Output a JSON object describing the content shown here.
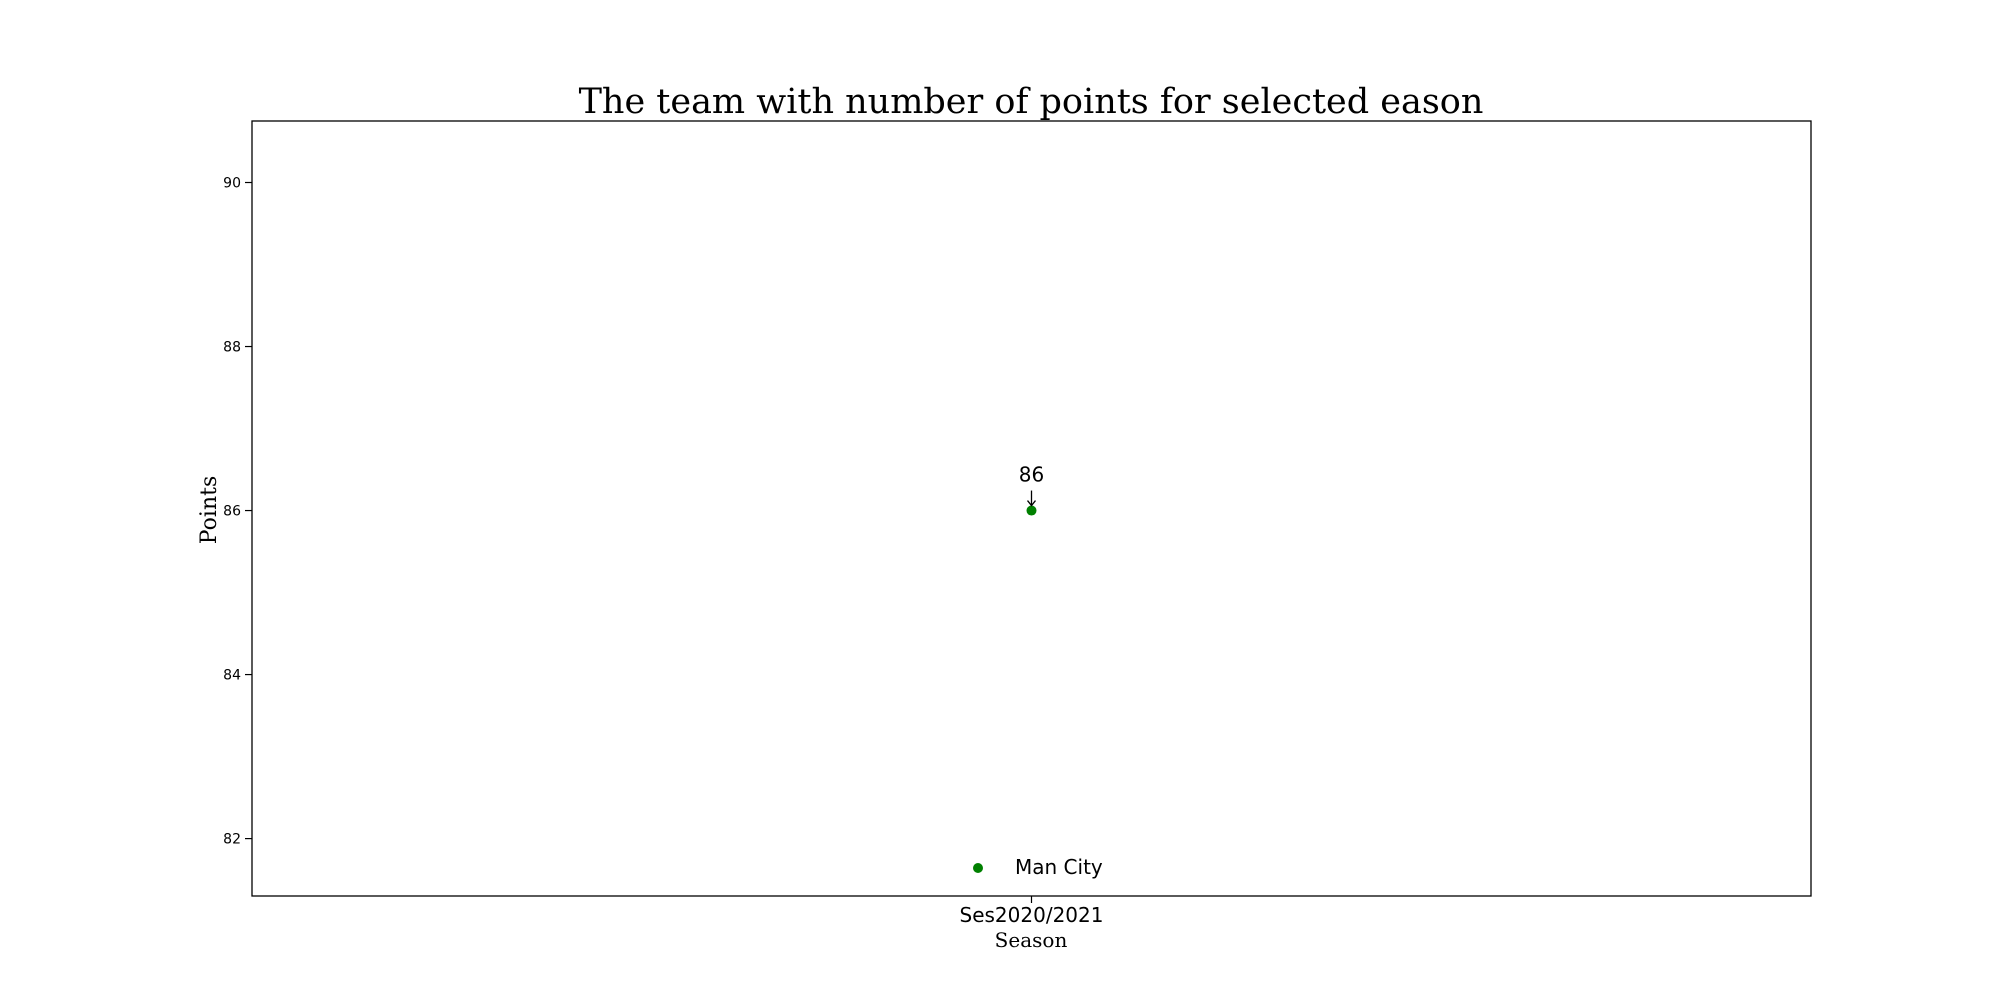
{
  "chart_data": {
    "type": "scatter",
    "title": "The team with number of points for selected eason",
    "xlabel": "Season",
    "ylabel": "Points",
    "categories": [
      "Ses2020/2021"
    ],
    "ylim": [
      81.3,
      90.75
    ],
    "yticks": [
      82,
      84,
      86,
      88,
      90
    ],
    "grid": false,
    "legend": {
      "placement": "lower-center",
      "entries": [
        "Man City"
      ]
    },
    "series": [
      {
        "name": "Man City",
        "color": "#008000",
        "values": [
          86
        ]
      }
    ],
    "annotations": [
      {
        "text": "86",
        "category": "Ses2020/2021",
        "value": 86
      }
    ]
  }
}
